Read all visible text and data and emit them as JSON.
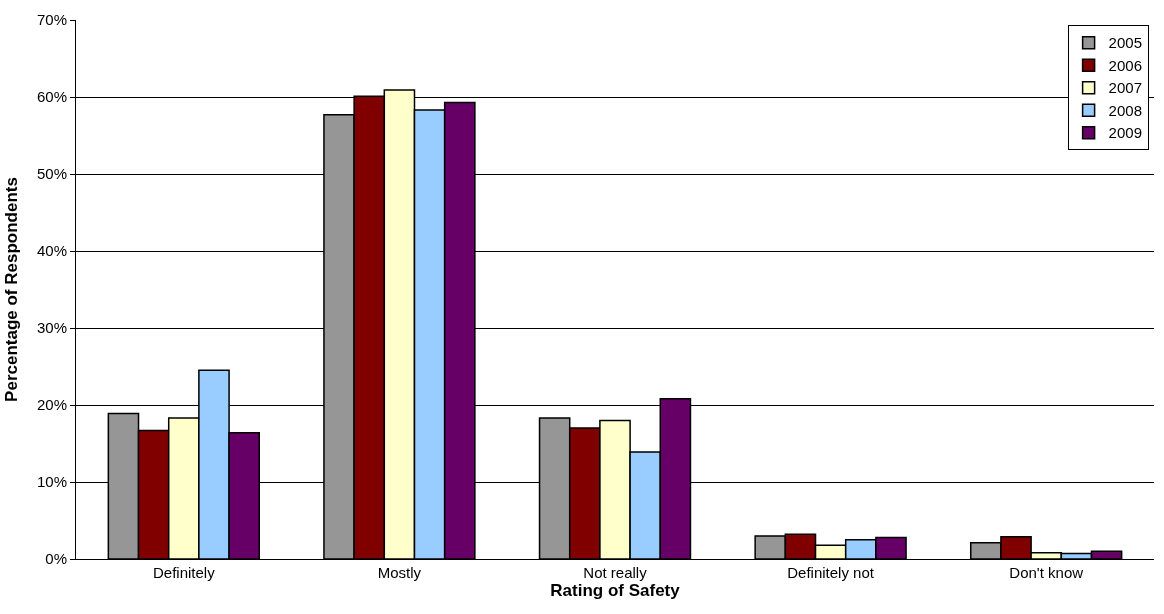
{
  "chart_data": {
    "type": "bar",
    "xlabel": "Rating of Safety",
    "ylabel": "Percentage of Respondents",
    "categories": [
      "Definitely",
      "Mostly",
      "Not really",
      "Definitely not",
      "Don't know"
    ],
    "series": [
      {
        "name": "2005",
        "color": "#969696",
        "values": [
          18.9,
          57.7,
          18.3,
          3.0,
          2.1
        ]
      },
      {
        "name": "2006",
        "color": "#800000",
        "values": [
          16.7,
          60.1,
          17.0,
          3.2,
          2.9
        ]
      },
      {
        "name": "2007",
        "color": "#ffffcc",
        "values": [
          18.3,
          60.9,
          18.0,
          1.8,
          0.8
        ]
      },
      {
        "name": "2008",
        "color": "#99ccff",
        "values": [
          24.5,
          58.3,
          13.9,
          2.5,
          0.7
        ]
      },
      {
        "name": "2009",
        "color": "#660066",
        "values": [
          16.4,
          59.3,
          20.8,
          2.8,
          1.0
        ]
      }
    ],
    "ylim": [
      0,
      70
    ],
    "yticks": [
      {
        "value": 0,
        "label": "0%"
      },
      {
        "value": 10,
        "label": "10%"
      },
      {
        "value": 20,
        "label": "20%"
      },
      {
        "value": 30,
        "label": "30%"
      },
      {
        "value": 40,
        "label": "40%"
      },
      {
        "value": 50,
        "label": "50%"
      },
      {
        "value": 60,
        "label": "60%"
      },
      {
        "value": 70,
        "label": "70%"
      }
    ],
    "grid": "y",
    "legend": "top right"
  }
}
